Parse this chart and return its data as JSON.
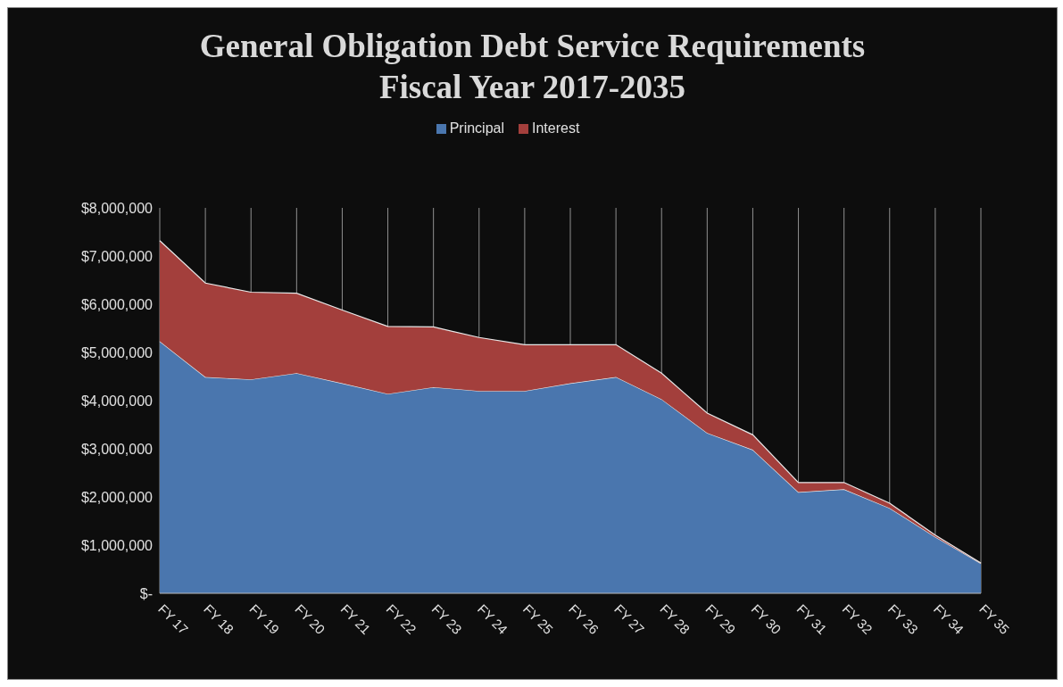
{
  "chart_data": {
    "type": "area",
    "title": "General Obligation Debt Service Requirements\nFiscal Year 2017-2035",
    "stacked": true,
    "legend": "top",
    "grid": "x",
    "categories": [
      "FY 17",
      "FY 18",
      "FY 19",
      "FY 20",
      "FY 21",
      "FY 22",
      "FY 23",
      "FY 24",
      "FY 25",
      "FY 26",
      "FY 27",
      "FY 28",
      "FY 29",
      "FY 30",
      "FY 31",
      "FY 32",
      "FY 33",
      "FY 34",
      "FY 35"
    ],
    "series": [
      {
        "name": "Principal",
        "color": "#4a76ae",
        "values": [
          5230000,
          4490000,
          4440000,
          4570000,
          4360000,
          4140000,
          4280000,
          4200000,
          4200000,
          4360000,
          4490000,
          4030000,
          3330000,
          2980000,
          2100000,
          2160000,
          1770000,
          1170000,
          620000
        ]
      },
      {
        "name": "Interest",
        "color": "#a33f3c",
        "values": [
          2090000,
          1950000,
          1810000,
          1660000,
          1520000,
          1400000,
          1250000,
          1110000,
          960000,
          800000,
          670000,
          540000,
          410000,
          310000,
          200000,
          140000,
          100000,
          40000,
          10000
        ]
      }
    ],
    "ylim": [
      0,
      8000000
    ],
    "yticks": [
      {
        "value": 0,
        "label": "$-"
      },
      {
        "value": 1000000,
        "label": "$1,000,000"
      },
      {
        "value": 2000000,
        "label": "$2,000,000"
      },
      {
        "value": 3000000,
        "label": "$3,000,000"
      },
      {
        "value": 4000000,
        "label": "$4,000,000"
      },
      {
        "value": 5000000,
        "label": "$5,000,000"
      },
      {
        "value": 6000000,
        "label": "$6,000,000"
      },
      {
        "value": 7000000,
        "label": "$7,000,000"
      },
      {
        "value": 8000000,
        "label": "$8,000,000"
      }
    ]
  }
}
